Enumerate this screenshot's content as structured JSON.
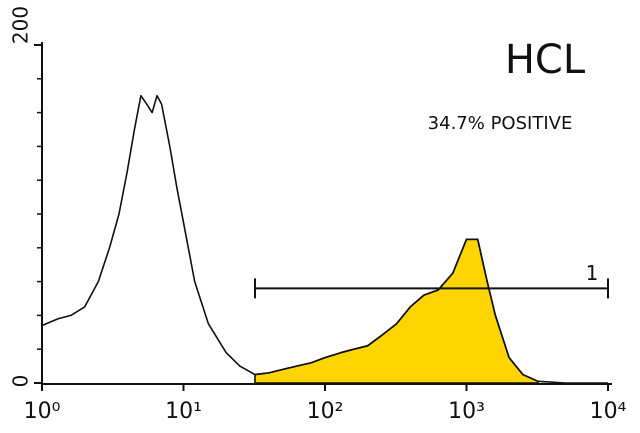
{
  "chart_data": {
    "type": "histogram-overlay",
    "title": "HCL",
    "annotation": "34.7% POSITIVE",
    "log_x": true,
    "xlim": [
      1,
      10000
    ],
    "xticks": [
      {
        "value": 1,
        "label": "10⁰"
      },
      {
        "value": 10,
        "label": "10¹"
      },
      {
        "value": 100,
        "label": "10²"
      },
      {
        "value": 1000,
        "label": "10³"
      },
      {
        "value": 10000,
        "label": "10⁴"
      }
    ],
    "ylim": [
      0,
      200
    ],
    "yticks": [
      0,
      200
    ],
    "x": [
      1,
      1.3,
      1.6,
      2,
      2.5,
      3,
      3.5,
      4,
      4.5,
      5,
      5.5,
      6,
      6.5,
      7,
      8,
      9,
      10,
      12,
      15,
      20,
      25,
      32,
      40,
      50,
      63,
      80,
      100,
      130,
      160,
      200,
      250,
      320,
      400,
      500,
      630,
      800,
      1000,
      1200,
      1400,
      1600,
      2000,
      2500,
      3200,
      5000,
      10000
    ],
    "series": [
      {
        "color": "#111111",
        "fill": "none",
        "values": [
          34,
          38,
          40,
          45,
          60,
          80,
          100,
          125,
          150,
          170,
          165,
          160,
          170,
          165,
          140,
          115,
          95,
          60,
          35,
          18,
          10,
          5,
          6,
          8,
          10,
          12,
          15,
          18,
          20,
          22,
          28,
          35,
          45,
          52,
          55,
          65,
          85,
          85,
          60,
          40,
          15,
          5,
          1,
          0,
          0
        ]
      },
      {
        "color": "#111111",
        "fill": "#ffd500",
        "values": [
          null,
          null,
          null,
          null,
          null,
          null,
          null,
          null,
          null,
          null,
          null,
          null,
          null,
          null,
          null,
          null,
          null,
          null,
          null,
          null,
          null,
          5,
          6,
          8,
          10,
          12,
          15,
          18,
          20,
          22,
          28,
          35,
          45,
          52,
          55,
          65,
          85,
          85,
          60,
          40,
          15,
          5,
          1,
          null,
          null
        ]
      }
    ],
    "gate": {
      "label": "1",
      "range": [
        32,
        10000
      ],
      "y": 56
    }
  }
}
